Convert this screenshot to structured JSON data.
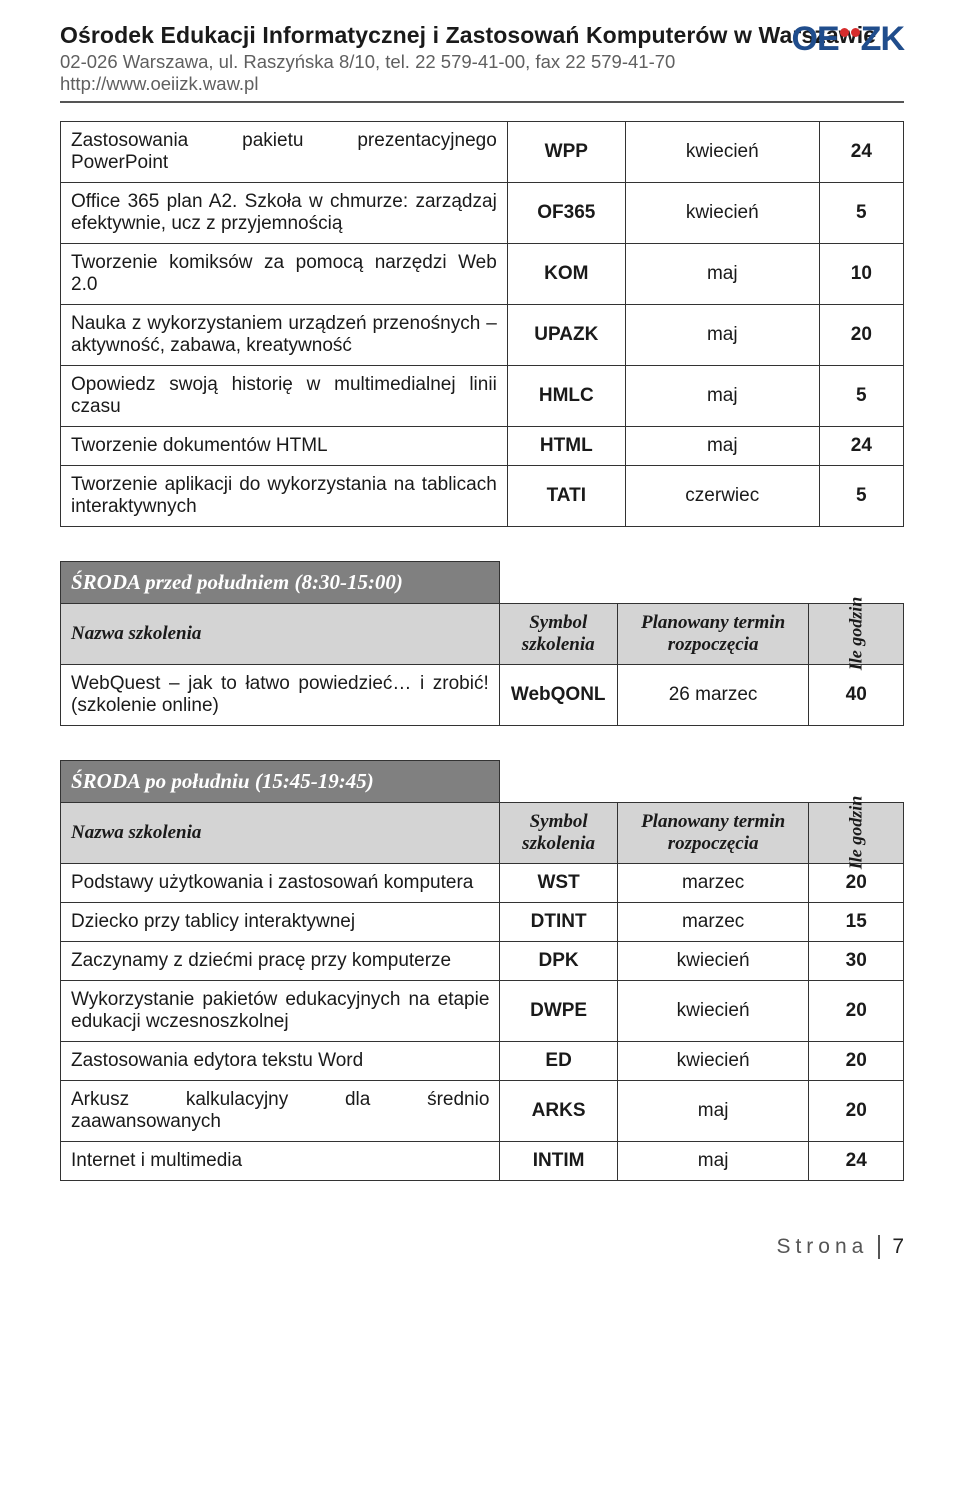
{
  "header": {
    "title": "Ośrodek Edukacji Informatycznej i Zastosowań Komputerów w Warszawie",
    "address": "02-026 Warszawa, ul. Raszyńska 8/10, tel. 22 579-41-00, fax 22 579-41-70",
    "url": "http://www.oeiizk.waw.pl",
    "logo_text": "OEIIZK",
    "logo_color": "#204d8c",
    "logo_dot_color": "#d62c2c"
  },
  "colors": {
    "text": "#1a1a1a",
    "muted": "#5f5f5f",
    "border": "#333333",
    "band_bg": "#d4d4d4",
    "bar_bg": "#808080",
    "bar_fg": "#ffffff"
  },
  "column_labels": {
    "name": "Nazwa szkolenia",
    "symbol": "Symbol szkolenia",
    "term": "Planowany termin rozpoczęcia",
    "hours": "Ile godzin"
  },
  "tables": {
    "top": {
      "rows": [
        {
          "name": "Zastosowania pakietu prezentacyjnego PowerPoint",
          "sym": "WPP",
          "term": "kwiecień",
          "hrs": "24"
        },
        {
          "name": "Office 365 plan A2. Szkoła w chmurze: zarządzaj efektywnie, ucz z przyjemnością",
          "sym": "OF365",
          "term": "kwiecień",
          "hrs": "5"
        },
        {
          "name": "Tworzenie komiksów za pomocą narzędzi Web 2.0",
          "sym": "KOM",
          "term": "maj",
          "hrs": "10"
        },
        {
          "name": "Nauka z wykorzystaniem urządzeń przenośnych – aktywność, zabawa, kreatywność",
          "sym": "UPAZK",
          "term": "maj",
          "hrs": "20"
        },
        {
          "name": "Opowiedz swoją historię w multimedialnej linii czasu",
          "sym": "HMLC",
          "term": "maj",
          "hrs": "5"
        },
        {
          "name": "Tworzenie dokumentów HTML",
          "sym": "HTML",
          "term": "maj",
          "hrs": "24"
        },
        {
          "name": "Tworzenie aplikacji do wykorzystania na tablicach interaktywnych",
          "sym": "TATI",
          "term": "czerwiec",
          "hrs": "5"
        }
      ]
    },
    "sroda_am": {
      "title": "ŚRODA przed południem (8:30-15:00)",
      "rows": [
        {
          "name": "WebQuest – jak to łatwo powiedzieć… i zrobić! (szkolenie online)",
          "sym": "WebQONL",
          "term": "26 marzec",
          "hrs": "40"
        }
      ]
    },
    "sroda_pm": {
      "title": "ŚRODA po południu (15:45-19:45)",
      "rows": [
        {
          "name": "Podstawy użytkowania i zastosowań komputera",
          "sym": "WST",
          "term": "marzec",
          "hrs": "20"
        },
        {
          "name": "Dziecko przy tablicy interaktywnej",
          "sym": "DTINT",
          "term": "marzec",
          "hrs": "15"
        },
        {
          "name": "Zaczynamy z dziećmi pracę przy komputerze",
          "sym": "DPK",
          "term": "kwiecień",
          "hrs": "30"
        },
        {
          "name": "Wykorzystanie pakietów edukacyjnych na etapie edukacji wczesnoszkolnej",
          "sym": "DWPE",
          "term": "kwiecień",
          "hrs": "20"
        },
        {
          "name": "Zastosowania edytora tekstu Word",
          "sym": "ED",
          "term": "kwiecień",
          "hrs": "20"
        },
        {
          "name": "Arkusz kalkulacyjny dla średnio zaawansowanych",
          "sym": "ARKS",
          "term": "maj",
          "hrs": "20"
        },
        {
          "name": "Internet i multimedia",
          "sym": "INTIM",
          "term": "maj",
          "hrs": "24"
        }
      ]
    }
  },
  "footer": {
    "label": "Strona",
    "page": "7"
  }
}
